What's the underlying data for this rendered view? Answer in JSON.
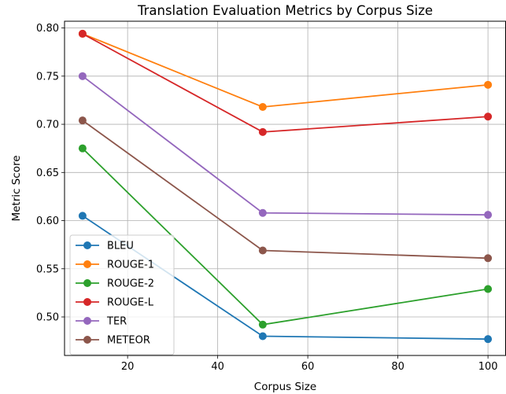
{
  "chart_data": {
    "type": "line",
    "title": "Translation Evaluation Metrics by Corpus Size",
    "xlabel": "Corpus Size",
    "ylabel": "Metric Score",
    "x": [
      10,
      50,
      100
    ],
    "xlim": [
      6,
      104
    ],
    "ylim": [
      0.46,
      0.807
    ],
    "xticks": [
      20,
      40,
      60,
      80,
      100
    ],
    "yticks": [
      0.5,
      0.55,
      0.6,
      0.65,
      0.7,
      0.75,
      0.8
    ],
    "xtick_labels": [
      "20",
      "40",
      "60",
      "80",
      "100"
    ],
    "ytick_labels": [
      "0.50",
      "0.55",
      "0.60",
      "0.65",
      "0.70",
      "0.75",
      "0.80"
    ],
    "grid": true,
    "legend_position": "lower-left",
    "series": [
      {
        "name": "BLEU",
        "color": "#1f77b4",
        "values": [
          0.605,
          0.48,
          0.477
        ]
      },
      {
        "name": "ROUGE-1",
        "color": "#ff7f0e",
        "values": [
          0.794,
          0.718,
          0.741
        ]
      },
      {
        "name": "ROUGE-2",
        "color": "#2ca02c",
        "values": [
          0.675,
          0.492,
          0.529
        ]
      },
      {
        "name": "ROUGE-L",
        "color": "#d62728",
        "values": [
          0.794,
          0.692,
          0.708
        ]
      },
      {
        "name": "TER",
        "color": "#9467bd",
        "values": [
          0.75,
          0.608,
          0.606
        ]
      },
      {
        "name": "METEOR",
        "color": "#8c564b",
        "values": [
          0.704,
          0.569,
          0.561
        ]
      }
    ]
  }
}
